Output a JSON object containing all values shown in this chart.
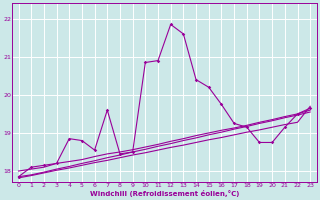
{
  "xlabel": "Windchill (Refroidissement éolien,°C)",
  "bg_color": "#cce8e8",
  "grid_color": "#ffffff",
  "line_color": "#990099",
  "xlim": [
    -0.5,
    23.5
  ],
  "ylim": [
    17.7,
    22.4
  ],
  "yticks": [
    18,
    19,
    20,
    21,
    22
  ],
  "xticks": [
    0,
    1,
    2,
    3,
    4,
    5,
    6,
    7,
    8,
    9,
    10,
    11,
    12,
    13,
    14,
    15,
    16,
    17,
    18,
    19,
    20,
    21,
    22,
    23
  ],
  "s1_x": [
    0,
    1,
    2,
    3,
    4,
    5,
    6,
    7,
    8,
    9,
    10,
    11,
    12,
    13,
    14,
    15,
    16,
    17,
    18,
    19,
    20,
    21,
    22,
    23
  ],
  "s1_y": [
    17.85,
    18.1,
    18.15,
    18.2,
    18.85,
    18.8,
    18.55,
    19.6,
    18.45,
    18.5,
    20.85,
    20.9,
    21.85,
    21.6,
    20.4,
    20.2,
    19.75,
    19.25,
    19.15,
    18.75,
    18.75,
    19.15,
    19.5,
    19.65
  ],
  "s2_x": [
    0,
    1,
    2,
    3,
    4,
    5,
    6,
    7,
    8,
    9,
    10,
    11,
    12,
    13,
    14,
    15,
    16,
    17,
    18,
    19,
    20,
    21,
    22,
    23
  ],
  "s2_y": [
    18.0,
    18.05,
    18.1,
    18.2,
    18.25,
    18.3,
    18.38,
    18.45,
    18.5,
    18.56,
    18.63,
    18.7,
    18.78,
    18.85,
    18.93,
    19.0,
    19.07,
    19.13,
    19.2,
    19.28,
    19.35,
    19.43,
    19.5,
    19.6
  ],
  "s3_x": [
    0,
    1,
    2,
    3,
    4,
    5,
    6,
    7,
    8,
    9,
    10,
    11,
    12,
    13,
    14,
    15,
    16,
    17,
    18,
    19,
    20,
    21,
    22,
    23
  ],
  "s3_y": [
    17.85,
    17.9,
    17.97,
    18.05,
    18.12,
    18.2,
    18.27,
    18.35,
    18.42,
    18.5,
    18.57,
    18.65,
    18.72,
    18.8,
    18.87,
    18.95,
    19.02,
    19.1,
    19.17,
    19.25,
    19.32,
    19.4,
    19.47,
    19.55
  ],
  "s4_x": [
    0,
    1,
    2,
    3,
    4,
    5,
    6,
    7,
    8,
    9,
    10,
    11,
    12,
    13,
    14,
    15,
    16,
    17,
    18,
    19,
    20,
    21,
    22,
    23
  ],
  "s4_y": [
    17.82,
    17.88,
    17.95,
    18.02,
    18.08,
    18.15,
    18.22,
    18.28,
    18.35,
    18.42,
    18.48,
    18.55,
    18.62,
    18.68,
    18.75,
    18.82,
    18.88,
    18.95,
    19.02,
    19.08,
    19.15,
    19.22,
    19.28,
    19.7
  ]
}
